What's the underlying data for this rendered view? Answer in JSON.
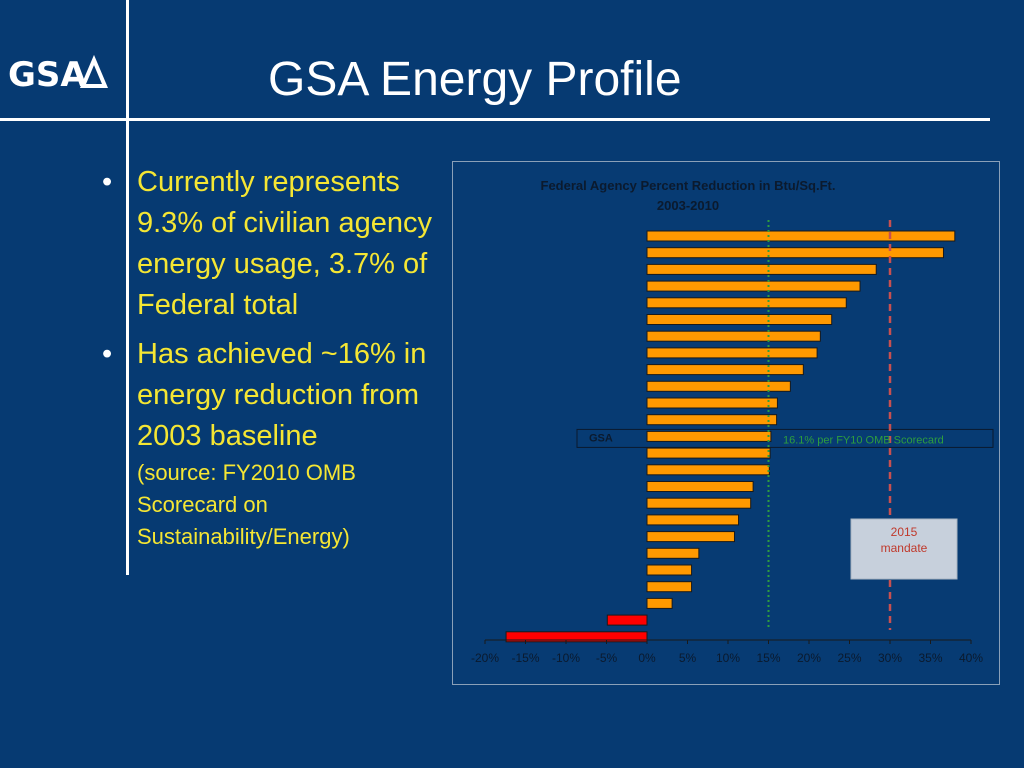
{
  "header": {
    "logo_text": "GSA",
    "title": "GSA Energy Profile"
  },
  "bullets": [
    {
      "text": "Currently represents 9.3% of civilian agency energy usage, 3.7% of Federal total"
    },
    {
      "text": "Has achieved ~16% in energy reduction from 2003 baseline",
      "source": "(source: FY2010 OMB Scorecard on Sustainability/Energy)"
    }
  ],
  "chart_data": {
    "type": "bar",
    "orientation": "horizontal",
    "title": "Federal Agency Percent Reduction in Btu/Sq.Ft.",
    "subtitle": "2003-2010",
    "xlim": [
      -20,
      40
    ],
    "x_ticks": [
      "-20%",
      "-15%",
      "-10%",
      "-5%",
      "0%",
      "5%",
      "10%",
      "15%",
      "20%",
      "25%",
      "30%",
      "35%",
      "40%"
    ],
    "values": [
      38,
      36.6,
      28.3,
      26.3,
      24.6,
      22.8,
      21.4,
      21,
      19.3,
      17.7,
      16.1,
      16,
      15.3,
      15.2,
      15.1,
      13.1,
      12.8,
      11.3,
      10.8,
      6.4,
      5.5,
      5.5,
      3.1,
      -4.9,
      -17.4
    ],
    "highlight_label": "GSA",
    "highlight_index": 12,
    "reference_lines": [
      {
        "value": 15,
        "style": "dotted",
        "color": "#2e9e3e"
      },
      {
        "value": 30,
        "style": "dashed",
        "color": "#c85050"
      }
    ],
    "annotations": {
      "gsa_note": "16.1% per FY10 OMB Scorecard",
      "mandate_line1": "2015",
      "mandate_line2": "mandate"
    },
    "colors": {
      "positive": "#ff9900",
      "negative": "#ff0000",
      "annotation_green": "#2e9e3e",
      "annotation_red": "#c0392b"
    }
  }
}
